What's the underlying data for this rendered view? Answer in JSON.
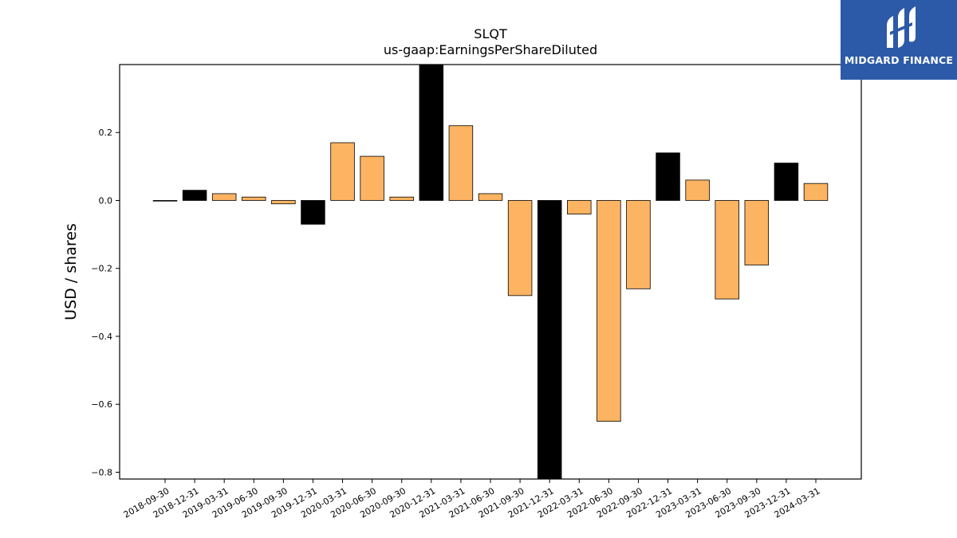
{
  "chart_data": {
    "type": "bar",
    "title": "SLQT",
    "subtitle": "us-gaap:EarningsPerShareDiluted",
    "xlabel": "",
    "ylabel": "USD / shares",
    "ylim": [
      -0.82,
      0.4
    ],
    "yticks": [
      -0.8,
      -0.6,
      -0.4,
      -0.2,
      0.0,
      0.2
    ],
    "ytick_labels": [
      "−0.8",
      "−0.6",
      "−0.4",
      "−0.2",
      "0.0",
      "0.2"
    ],
    "grid": false,
    "categories": [
      "2018-09-30",
      "2018-12-31",
      "2019-03-31",
      "2019-06-30",
      "2019-09-30",
      "2019-12-31",
      "2020-03-31",
      "2020-06-30",
      "2020-09-30",
      "2020-12-31",
      "2021-03-31",
      "2021-06-30",
      "2021-09-30",
      "2021-12-31",
      "2022-03-31",
      "2022-06-30",
      "2022-09-30",
      "2022-12-31",
      "2023-03-31",
      "2023-06-30",
      "2023-09-30",
      "2023-12-31",
      "2024-03-31"
    ],
    "values": [
      0.0,
      0.03,
      0.02,
      0.01,
      -0.01,
      -0.07,
      0.17,
      0.13,
      0.01,
      0.4,
      0.22,
      0.02,
      -0.28,
      -0.82,
      -0.04,
      -0.65,
      -0.26,
      0.14,
      0.06,
      -0.29,
      -0.19,
      0.11,
      0.05
    ],
    "bar_colors": [
      "#fdb462",
      "#000000",
      "#fdb462",
      "#fdb462",
      "#fdb462",
      "#000000",
      "#fdb462",
      "#fdb462",
      "#fdb462",
      "#000000",
      "#fdb462",
      "#fdb462",
      "#fdb462",
      "#000000",
      "#fdb462",
      "#fdb462",
      "#fdb462",
      "#000000",
      "#fdb462",
      "#fdb462",
      "#fdb462",
      "#000000",
      "#fdb462"
    ]
  },
  "logo": {
    "text": "MIDGARD FINANCE",
    "color": "#2c5aa8"
  }
}
